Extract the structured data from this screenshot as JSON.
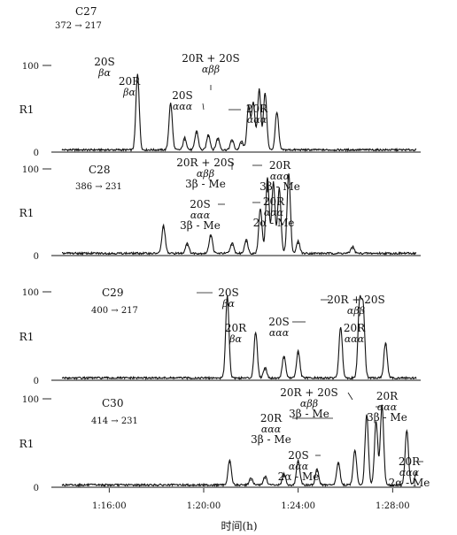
{
  "chart_data": {
    "type": "line",
    "x_axis": {
      "label": "时间(h)",
      "range": [
        74.0,
        89.0
      ],
      "ticks": [
        {
          "value": 76,
          "label": "1:16:00"
        },
        {
          "value": 80,
          "label": "1:20:00"
        },
        {
          "value": 84,
          "label": "1:24:00"
        },
        {
          "value": 88,
          "label": "1:28:00"
        }
      ]
    },
    "panels": [
      {
        "title": "C27",
        "transition": "372 → 217",
        "ylabel": "R1",
        "ylim": [
          0,
          100
        ],
        "yticks": [
          "100",
          "0"
        ],
        "peaks": [
          {
            "x": 77.2,
            "y": 88
          },
          {
            "x": 78.6,
            "y": 54
          },
          {
            "x": 79.2,
            "y": 14
          },
          {
            "x": 79.7,
            "y": 22
          },
          {
            "x": 80.2,
            "y": 18
          },
          {
            "x": 80.6,
            "y": 14
          },
          {
            "x": 81.2,
            "y": 12
          },
          {
            "x": 81.6,
            "y": 10
          },
          {
            "x": 81.9,
            "y": 50
          },
          {
            "x": 82.1,
            "y": 55
          },
          {
            "x": 82.35,
            "y": 70
          },
          {
            "x": 82.6,
            "y": 66
          },
          {
            "x": 83.1,
            "y": 44
          }
        ],
        "annotations": [
          {
            "lines": [
              "20S",
              "βα"
            ],
            "x": 77.2
          },
          {
            "lines": [
              "20R",
              "βα"
            ],
            "x": 78.6
          },
          {
            "lines": [
              "20S",
              "ααα"
            ],
            "x": 81.9
          },
          {
            "lines": [
              "20R + 20S",
              "αββ"
            ],
            "x": 82.35
          },
          {
            "lines": [
              "20R",
              "ααα"
            ],
            "x": 83.1
          }
        ]
      },
      {
        "title": "C28",
        "transition": "386 → 231",
        "ylabel": "R1",
        "ylim": [
          0,
          100
        ],
        "yticks": [
          "100",
          "0"
        ],
        "peaks": [
          {
            "x": 78.3,
            "y": 32
          },
          {
            "x": 79.3,
            "y": 12
          },
          {
            "x": 80.3,
            "y": 22
          },
          {
            "x": 81.2,
            "y": 12
          },
          {
            "x": 81.8,
            "y": 16
          },
          {
            "x": 82.4,
            "y": 52
          },
          {
            "x": 82.7,
            "y": 88
          },
          {
            "x": 82.95,
            "y": 82
          },
          {
            "x": 83.2,
            "y": 75
          },
          {
            "x": 83.6,
            "y": 92
          },
          {
            "x": 84.0,
            "y": 14
          },
          {
            "x": 86.3,
            "y": 8
          }
        ],
        "annotations": [
          {
            "lines": [
              "20R + 20S",
              "αββ",
              "3β - Me"
            ],
            "x": 82.95
          },
          {
            "lines": [
              "20S",
              "ααα",
              "3β - Me"
            ],
            "x": 82.4
          },
          {
            "lines": [
              "20R",
              "ααα",
              "3β - Me"
            ],
            "x": 83.6
          },
          {
            "lines": [
              "20R",
              "ααα",
              "2α - Me"
            ],
            "x": 83.2
          }
        ]
      },
      {
        "title": "C29",
        "transition": "400 → 217",
        "ylabel": "R1",
        "ylim": [
          0,
          100
        ],
        "yticks": [
          "100",
          "0"
        ],
        "peaks": [
          {
            "x": 81.0,
            "y": 93
          },
          {
            "x": 82.2,
            "y": 52
          },
          {
            "x": 82.6,
            "y": 12
          },
          {
            "x": 83.4,
            "y": 25
          },
          {
            "x": 84.0,
            "y": 30
          },
          {
            "x": 85.8,
            "y": 58
          },
          {
            "x": 86.6,
            "y": 82
          },
          {
            "x": 86.75,
            "y": 78
          },
          {
            "x": 87.7,
            "y": 40
          }
        ],
        "annotations": [
          {
            "lines": [
              "20S",
              "βα"
            ],
            "x": 81.0
          },
          {
            "lines": [
              "20R",
              "βα"
            ],
            "x": 82.2
          },
          {
            "lines": [
              "20S",
              "ααα"
            ],
            "x": 85.8
          },
          {
            "lines": [
              "20R + 20S",
              "αββ"
            ],
            "x": 86.6
          },
          {
            "lines": [
              "20R",
              "ααα"
            ],
            "x": 87.7
          }
        ]
      },
      {
        "title": "C30",
        "transition": "414 → 231",
        "ylabel": "R1",
        "ylim": [
          0,
          100
        ],
        "yticks": [
          "100",
          "0"
        ],
        "peaks": [
          {
            "x": 81.1,
            "y": 28
          },
          {
            "x": 82.0,
            "y": 8
          },
          {
            "x": 82.6,
            "y": 10
          },
          {
            "x": 83.4,
            "y": 12
          },
          {
            "x": 84.0,
            "y": 28
          },
          {
            "x": 84.8,
            "y": 18
          },
          {
            "x": 85.7,
            "y": 26
          },
          {
            "x": 86.4,
            "y": 40
          },
          {
            "x": 86.9,
            "y": 80
          },
          {
            "x": 87.3,
            "y": 72
          },
          {
            "x": 87.55,
            "y": 90
          },
          {
            "x": 88.6,
            "y": 62
          },
          {
            "x": 89.0,
            "y": 14
          }
        ],
        "annotations": [
          {
            "lines": [
              "20R + 20S",
              "αββ",
              "3β - Me"
            ],
            "x": 87.55
          },
          {
            "lines": [
              "20R",
              "ααα",
              "3β - Me"
            ],
            "x": 86.9
          },
          {
            "lines": [
              "20R",
              "ααα",
              "3β - Me"
            ],
            "x": 88.6
          },
          {
            "lines": [
              "20S",
              "ααα",
              "2α - Me"
            ],
            "x": 86.4
          },
          {
            "lines": [
              "20R",
              "ααα",
              "2α - Me"
            ],
            "x": 89.0
          }
        ]
      }
    ]
  }
}
